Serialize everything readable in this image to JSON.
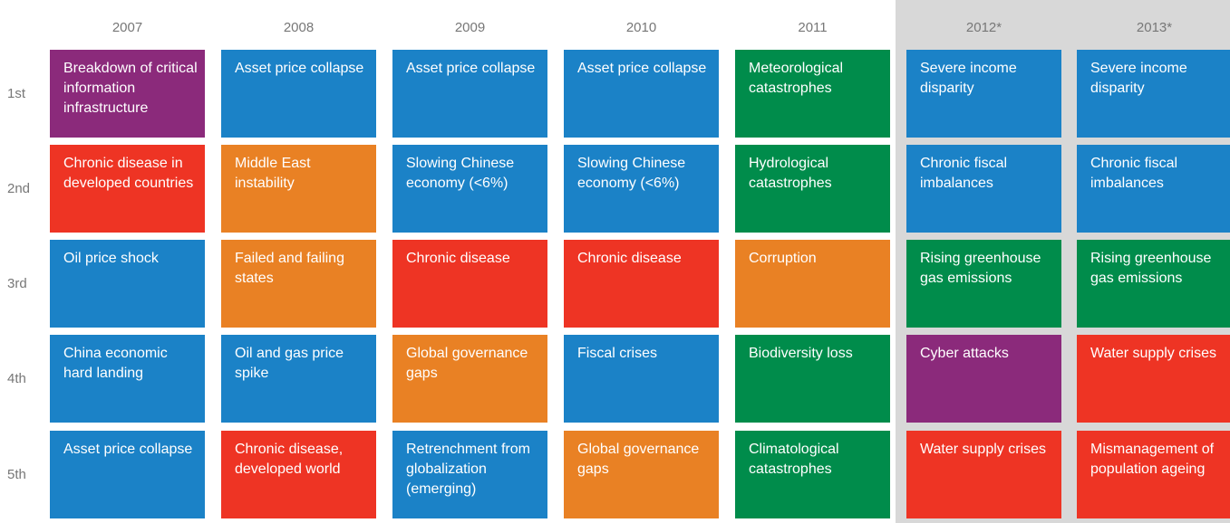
{
  "rows": [
    "1st",
    "2nd",
    "3rd",
    "4th",
    "5th"
  ],
  "columns": [
    {
      "year": "2007",
      "cells": [
        {
          "text": "Breakdown of critical information infrastructure",
          "color": "#8b2a7b"
        },
        {
          "text": "Chronic disease in developed countries",
          "color": "#ee3424"
        },
        {
          "text": "Oil price shock",
          "color": "#1b82c7"
        },
        {
          "text": "China economic hard landing",
          "color": "#1b82c7"
        },
        {
          "text": "Asset price collapse",
          "color": "#1b82c7"
        }
      ]
    },
    {
      "year": "2008",
      "cells": [
        {
          "text": "Asset price collapse",
          "color": "#1b82c7"
        },
        {
          "text": "Middle East instability",
          "color": "#e98124"
        },
        {
          "text": "Failed and failing states",
          "color": "#e98124"
        },
        {
          "text": "Oil and gas price spike",
          "color": "#1b82c7"
        },
        {
          "text": "Chronic disease, developed world",
          "color": "#ee3424"
        }
      ]
    },
    {
      "year": "2009",
      "cells": [
        {
          "text": "Asset price collapse",
          "color": "#1b82c7"
        },
        {
          "text": "Slowing Chinese economy (<6%)",
          "color": "#1b82c7"
        },
        {
          "text": "Chronic disease",
          "color": "#ee3424"
        },
        {
          "text": "Global governance gaps",
          "color": "#e98124"
        },
        {
          "text": "Retrenchment from globalization (emerging)",
          "color": "#1b82c7"
        }
      ]
    },
    {
      "year": "2010",
      "cells": [
        {
          "text": "Asset price collapse",
          "color": "#1b82c7"
        },
        {
          "text": "Slowing Chinese economy (<6%)",
          "color": "#1b82c7"
        },
        {
          "text": "Chronic disease",
          "color": "#ee3424"
        },
        {
          "text": "Fiscal crises",
          "color": "#1b82c7"
        },
        {
          "text": "Global governance gaps",
          "color": "#e98124"
        }
      ]
    },
    {
      "year": "2011",
      "cells": [
        {
          "text": "Meteorological catastrophes",
          "color": "#008c4b"
        },
        {
          "text": "Hydrological catastrophes",
          "color": "#008c4b"
        },
        {
          "text": "Corruption",
          "color": "#e98124"
        },
        {
          "text": "Biodiversity loss",
          "color": "#008c4b"
        },
        {
          "text": "Climatological catastrophes",
          "color": "#008c4b"
        }
      ]
    },
    {
      "year": "2012*",
      "cells": [
        {
          "text": "Severe income disparity",
          "color": "#1b82c7"
        },
        {
          "text": "Chronic fiscal imbalances",
          "color": "#1b82c7"
        },
        {
          "text": "Rising greenhouse gas emissions",
          "color": "#008c4b"
        },
        {
          "text": "Cyber attacks",
          "color": "#8b2a7b"
        },
        {
          "text": "Water supply crises",
          "color": "#ee3424"
        }
      ]
    },
    {
      "year": "2013*",
      "cells": [
        {
          "text": "Severe income disparity",
          "color": "#1b82c7"
        },
        {
          "text": "Chronic fiscal imbalances",
          "color": "#1b82c7"
        },
        {
          "text": "Rising greenhouse gas emissions",
          "color": "#008c4b"
        },
        {
          "text": "Water supply crises",
          "color": "#ee3424"
        },
        {
          "text": "Mismanagement of population ageing",
          "color": "#ee3424"
        }
      ]
    }
  ]
}
